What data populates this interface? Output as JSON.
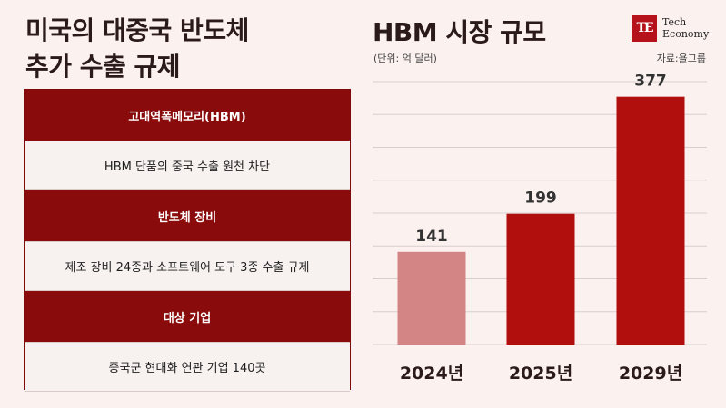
{
  "left": {
    "title_line1": "미국의 대중국 반도체",
    "title_line2": "추가 수출 규제",
    "rows": [
      {
        "type": "head",
        "text": "고대역폭메모리(HBM)"
      },
      {
        "type": "body",
        "text": "HBM 단품의 중국 수출 원천 차단"
      },
      {
        "type": "head",
        "text": "반도체 장비"
      },
      {
        "type": "body",
        "text": "제조 장비 24종과 소프트웨어 도구 3종 수출 규제"
      },
      {
        "type": "head",
        "text": "대상 기업"
      },
      {
        "type": "body",
        "text": "중국군 현대화 연관 기업 140곳"
      }
    ]
  },
  "logo": {
    "mark": "TE",
    "line1": "Tech",
    "line2": "Economy"
  },
  "chart_data": {
    "type": "bar",
    "title": "HBM 시장 규모",
    "unit": "(단위: 억 달러)",
    "source": "자료:욜그룹",
    "categories": [
      "2024년",
      "2025년",
      "2029년"
    ],
    "values": [
      141,
      199,
      377
    ],
    "value_labels": [
      "141",
      "199",
      "377"
    ],
    "colors": [
      "#d38585",
      "#b10e0e",
      "#b10e0e"
    ],
    "ylim": [
      0,
      400
    ],
    "grid": true
  }
}
